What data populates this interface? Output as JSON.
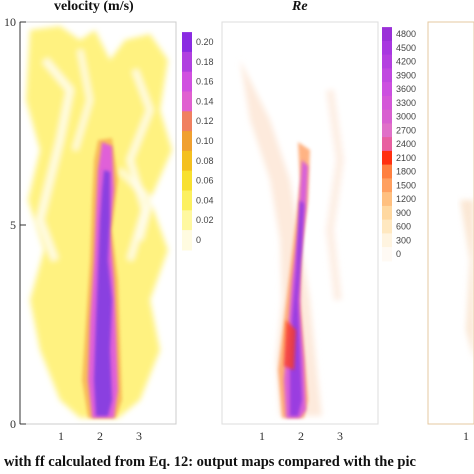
{
  "panels": [
    {
      "title": "velocity (m/s)",
      "italic": false
    },
    {
      "title": "Re",
      "italic": true
    }
  ],
  "y_ticks": [
    "10",
    "5",
    "0"
  ],
  "x_ticks": [
    "1",
    "2",
    "3"
  ],
  "colorbar_velocity": {
    "labels": [
      "0.20",
      "0.18",
      "0.16",
      "0.14",
      "0.12",
      "0.10",
      "0.08",
      "0.06",
      "0.04",
      "0.02",
      "0"
    ],
    "colors": [
      "#8a2be2",
      "#b040e0",
      "#d050e0",
      "#e060d0",
      "#f08060",
      "#f0a030",
      "#f4c020",
      "#f8e030",
      "#fcf060",
      "#fff8a0",
      "#fffbe0"
    ]
  },
  "colorbar_re": {
    "labels": [
      "4800",
      "4500",
      "4200",
      "3900",
      "3600",
      "3300",
      "3000",
      "2700",
      "2400",
      "2100",
      "1800",
      "1500",
      "1200",
      "900",
      "600",
      "300",
      "0"
    ],
    "colors": [
      "#9a30d8",
      "#a838e0",
      "#b440e0",
      "#c048e0",
      "#cc50e0",
      "#d458d8",
      "#d860d0",
      "#e070c8",
      "#e860a0",
      "#ff3010",
      "#ff8040",
      "#ffa060",
      "#ffc080",
      "#ffd8a0",
      "#ffe8c0",
      "#fff4e0",
      "#fffaf4"
    ]
  },
  "caption": "with ff calculated from Eq. 12: output maps compared with the pic"
}
